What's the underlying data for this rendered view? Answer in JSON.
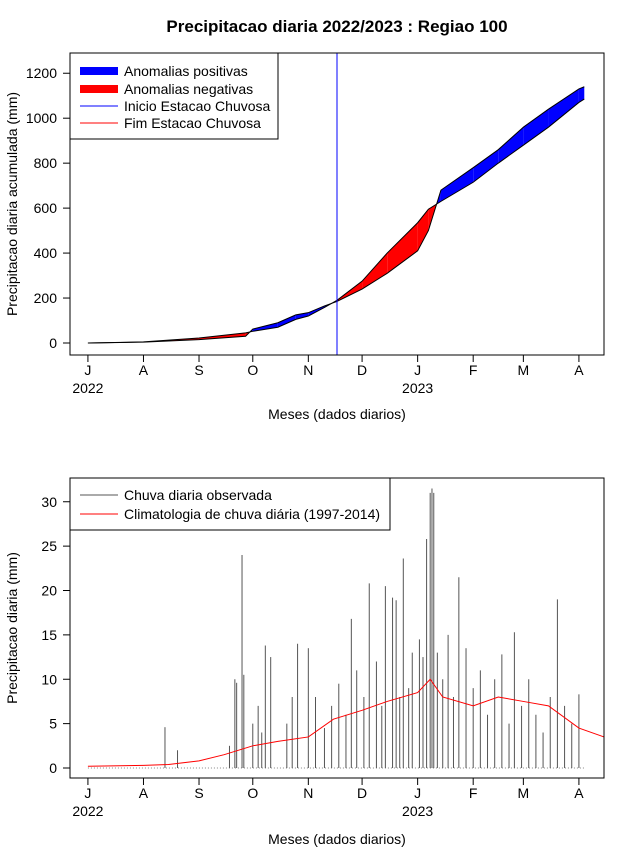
{
  "chart_data": [
    {
      "type": "area",
      "title": "Precipitacao diaria 2022/2023 : Regiao 100",
      "xlabel": "Meses (dados diarios)",
      "ylabel": "Precipitacao diaria acumulada (mm)",
      "ylim": [
        0,
        1250
      ],
      "yticks": [
        0,
        200,
        400,
        600,
        800,
        1000,
        1200
      ],
      "xticks": [
        {
          "date": "2022-07-01",
          "label": "J"
        },
        {
          "date": "2022-08-01",
          "label": "A"
        },
        {
          "date": "2022-09-01",
          "label": "S"
        },
        {
          "date": "2022-10-01",
          "label": "O"
        },
        {
          "date": "2022-11-01",
          "label": "N"
        },
        {
          "date": "2022-12-01",
          "label": "D"
        },
        {
          "date": "2023-01-01",
          "label": "J"
        },
        {
          "date": "2023-02-01",
          "label": "F"
        },
        {
          "date": "2023-03-01",
          "label": "M"
        },
        {
          "date": "2023-04-01",
          "label": "A"
        }
      ],
      "year_labels": [
        {
          "date": "2022-07-01",
          "label": "2022"
        },
        {
          "date": "2023-01-01",
          "label": "2023"
        }
      ],
      "xlim": [
        "2022-06-21",
        "2023-04-15"
      ],
      "legend": [
        {
          "label": "Anomalias positivas",
          "color": "#0000ff",
          "style": "thick"
        },
        {
          "label": "Anomalias negativas",
          "color": "#ff0000",
          "style": "thick"
        },
        {
          "label": "Inicio Estacao Chuvosa",
          "color": "#0000ff",
          "style": "line"
        },
        {
          "label": "Fim Estacao Chuvosa",
          "color": "#ff0000",
          "style": "line"
        }
      ],
      "legend_position": "top-left",
      "rainy_season_start": "2022-11-17",
      "observed_cumulative": [
        [
          "2022-07-01",
          0
        ],
        [
          "2022-08-01",
          4
        ],
        [
          "2022-09-01",
          15
        ],
        [
          "2022-09-27",
          30
        ],
        [
          "2022-10-01",
          62
        ],
        [
          "2022-10-15",
          90
        ],
        [
          "2022-10-25",
          125
        ],
        [
          "2022-11-01",
          135
        ],
        [
          "2022-11-10",
          165
        ],
        [
          "2022-11-17",
          185
        ],
        [
          "2022-12-01",
          240
        ],
        [
          "2022-12-15",
          310
        ],
        [
          "2023-01-01",
          410
        ],
        [
          "2023-01-07",
          500
        ],
        [
          "2023-01-14",
          680
        ],
        [
          "2023-02-01",
          780
        ],
        [
          "2023-02-15",
          860
        ],
        [
          "2023-03-01",
          960
        ],
        [
          "2023-03-15",
          1040
        ],
        [
          "2023-04-01",
          1130
        ],
        [
          "2023-04-04",
          1140
        ]
      ],
      "climatology_cumulative": [
        [
          "2022-07-01",
          0
        ],
        [
          "2022-08-01",
          5
        ],
        [
          "2022-09-01",
          22
        ],
        [
          "2022-09-27",
          45
        ],
        [
          "2022-10-01",
          52
        ],
        [
          "2022-10-15",
          70
        ],
        [
          "2022-10-25",
          105
        ],
        [
          "2022-11-01",
          120
        ],
        [
          "2022-11-10",
          158
        ],
        [
          "2022-11-17",
          190
        ],
        [
          "2022-12-01",
          275
        ],
        [
          "2022-12-15",
          400
        ],
        [
          "2023-01-01",
          535
        ],
        [
          "2023-01-07",
          595
        ],
        [
          "2023-01-14",
          630
        ],
        [
          "2023-02-01",
          715
        ],
        [
          "2023-02-15",
          800
        ],
        [
          "2023-03-01",
          880
        ],
        [
          "2023-03-15",
          960
        ],
        [
          "2023-04-01",
          1070
        ],
        [
          "2023-04-04",
          1085
        ]
      ]
    },
    {
      "type": "bar",
      "xlabel": "Meses (dados diarios)",
      "ylabel": "Precipitacao diaria (mm)",
      "ylim": [
        0,
        32
      ],
      "yticks": [
        0,
        5,
        10,
        15,
        20,
        25,
        30
      ],
      "xticks": [
        {
          "date": "2022-07-01",
          "label": "J"
        },
        {
          "date": "2022-08-01",
          "label": "A"
        },
        {
          "date": "2022-09-01",
          "label": "S"
        },
        {
          "date": "2022-10-01",
          "label": "O"
        },
        {
          "date": "2022-11-01",
          "label": "N"
        },
        {
          "date": "2022-12-01",
          "label": "D"
        },
        {
          "date": "2023-01-01",
          "label": "J"
        },
        {
          "date": "2023-02-01",
          "label": "F"
        },
        {
          "date": "2023-03-01",
          "label": "M"
        },
        {
          "date": "2023-04-01",
          "label": "A"
        }
      ],
      "year_labels": [
        {
          "date": "2022-07-01",
          "label": "2022"
        },
        {
          "date": "2023-01-01",
          "label": "2023"
        }
      ],
      "xlim": [
        "2022-06-21",
        "2023-04-15"
      ],
      "legend": [
        {
          "label": "Chuva diaria observada",
          "color": "#555555"
        },
        {
          "label": "Climatologia de chuva diária (1997-2014)",
          "color": "#ff0000"
        }
      ],
      "legend_position": "top-left",
      "observed_daily": [
        [
          "2022-08-13",
          4.6
        ],
        [
          "2022-08-20",
          2.0
        ],
        [
          "2022-09-18",
          2.5
        ],
        [
          "2022-09-21",
          10.0
        ],
        [
          "2022-09-22",
          9.6
        ],
        [
          "2022-09-25",
          24.0
        ],
        [
          "2022-09-26",
          10.5
        ],
        [
          "2022-10-01",
          5.0
        ],
        [
          "2022-10-04",
          7.0
        ],
        [
          "2022-10-06",
          4.0
        ],
        [
          "2022-10-08",
          13.8
        ],
        [
          "2022-10-11",
          12.5
        ],
        [
          "2022-10-20",
          5.0
        ],
        [
          "2022-10-23",
          8.0
        ],
        [
          "2022-10-26",
          14.0
        ],
        [
          "2022-11-01",
          13.5
        ],
        [
          "2022-11-05",
          8.0
        ],
        [
          "2022-11-10",
          4.5
        ],
        [
          "2022-11-14",
          7.0
        ],
        [
          "2022-11-18",
          9.5
        ],
        [
          "2022-11-22",
          6.0
        ],
        [
          "2022-11-25",
          16.8
        ],
        [
          "2022-11-28",
          11.0
        ],
        [
          "2022-12-02",
          8.0
        ],
        [
          "2022-12-05",
          20.8
        ],
        [
          "2022-12-09",
          12.0
        ],
        [
          "2022-12-12",
          7.0
        ],
        [
          "2022-12-14",
          20.5
        ],
        [
          "2022-12-18",
          19.2
        ],
        [
          "2022-12-20",
          18.9
        ],
        [
          "2022-12-22",
          8.0
        ],
        [
          "2022-12-24",
          23.6
        ],
        [
          "2022-12-27",
          9.0
        ],
        [
          "2022-12-29",
          13.0
        ],
        [
          "2023-01-02",
          14.5
        ],
        [
          "2023-01-04",
          12.5
        ],
        [
          "2023-01-06",
          25.8
        ],
        [
          "2023-01-08",
          31.0
        ],
        [
          "2023-01-09",
          31.5
        ],
        [
          "2023-01-10",
          31.0
        ],
        [
          "2023-01-12",
          13.0
        ],
        [
          "2023-01-15",
          10.0
        ],
        [
          "2023-01-18",
          15.0
        ],
        [
          "2023-01-21",
          8.0
        ],
        [
          "2023-01-24",
          21.5
        ],
        [
          "2023-01-28",
          13.5
        ],
        [
          "2023-02-01",
          9.0
        ],
        [
          "2023-02-05",
          11.0
        ],
        [
          "2023-02-09",
          6.0
        ],
        [
          "2023-02-13",
          10.0
        ],
        [
          "2023-02-17",
          12.8
        ],
        [
          "2023-02-21",
          5.0
        ],
        [
          "2023-02-24",
          15.3
        ],
        [
          "2023-02-28",
          7.0
        ],
        [
          "2023-03-04",
          10.0
        ],
        [
          "2023-03-08",
          6.0
        ],
        [
          "2023-03-12",
          4.0
        ],
        [
          "2023-03-16",
          8.0
        ],
        [
          "2023-03-20",
          19.0
        ],
        [
          "2023-03-24",
          7.0
        ],
        [
          "2023-03-28",
          5.0
        ],
        [
          "2023-04-01",
          8.3
        ]
      ],
      "climatology_daily": [
        [
          "2022-07-01",
          0.2
        ],
        [
          "2022-08-01",
          0.3
        ],
        [
          "2022-08-15",
          0.4
        ],
        [
          "2022-09-01",
          0.8
        ],
        [
          "2022-09-15",
          1.5
        ],
        [
          "2022-10-01",
          2.5
        ],
        [
          "2022-10-15",
          3.0
        ],
        [
          "2022-11-01",
          3.5
        ],
        [
          "2022-11-15",
          5.5
        ],
        [
          "2022-12-01",
          6.5
        ],
        [
          "2022-12-15",
          7.5
        ],
        [
          "2023-01-01",
          8.5
        ],
        [
          "2023-01-08",
          10.0
        ],
        [
          "2023-01-15",
          8.0
        ],
        [
          "2023-02-01",
          7.0
        ],
        [
          "2023-02-15",
          8.0
        ],
        [
          "2023-03-01",
          7.5
        ],
        [
          "2023-03-15",
          7.0
        ],
        [
          "2023-04-01",
          4.5
        ],
        [
          "2023-04-15",
          3.5
        ]
      ]
    }
  ]
}
